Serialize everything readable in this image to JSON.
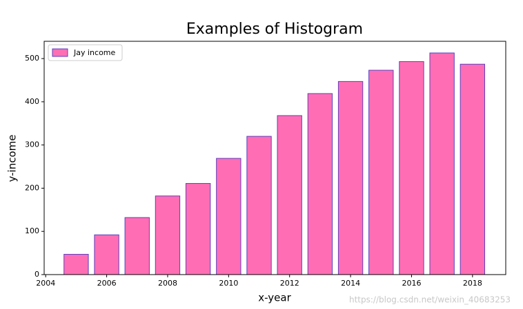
{
  "chart_data": {
    "type": "bar",
    "title": "Examples of Histogram",
    "x_label": "x-year",
    "y_label": "y-income",
    "x": [
      2005,
      2006,
      2007,
      2008,
      2009,
      2010,
      2011,
      2012,
      2013,
      2014,
      2015,
      2016,
      2017,
      2018
    ],
    "series": [
      {
        "name": "Jay income",
        "color": "#ff6eb4",
        "edgecolor": "#5b3fbf",
        "values": [
          47,
          92,
          132,
          182,
          211,
          269,
          320,
          368,
          419,
          447,
          473,
          493,
          513,
          487
        ]
      }
    ],
    "xlim": [
      2003.95,
      2019.09
    ],
    "xticks": [
      2004,
      2006,
      2008,
      2010,
      2012,
      2014,
      2016,
      2018
    ],
    "ylim": [
      0,
      540
    ],
    "yticks": [
      0,
      100,
      200,
      300,
      400,
      500
    ],
    "legend": "upper left",
    "grid": false,
    "watermark": "https://blog.csdn.net/weixin_40683253"
  }
}
